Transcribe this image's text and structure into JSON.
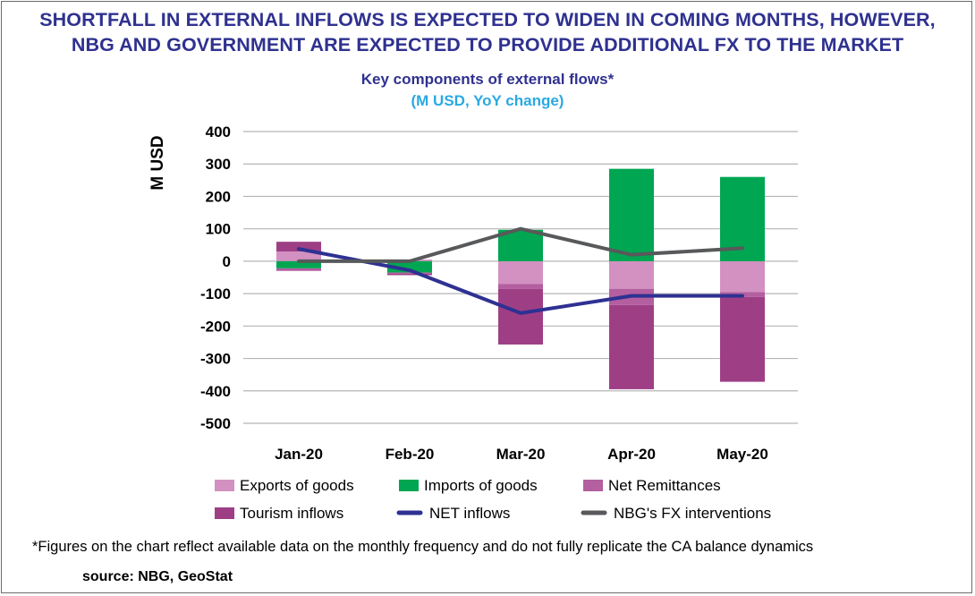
{
  "headline": {
    "line1": "SHORTFALL IN EXTERNAL INFLOWS IS EXPECTED TO WIDEN IN COMING MONTHS, HOWEVER,",
    "line2": "NBG AND GOVERNMENT ARE EXPECTED TO PROVIDE ADDITIONAL FX TO THE MARKET"
  },
  "footnote": "*Figures on the chart reflect available data on the monthly frequency and do not fully replicate the CA balance dynamics",
  "source": "source: NBG, GeoStat",
  "colors": {
    "headline": "#2f3190",
    "subtitle": "#29a9e1",
    "exports": "#d291c1",
    "imports": "#00a651",
    "remittances": "#b35fa0",
    "tourism": "#9e3f86",
    "net_inflows": "#2e3192",
    "nbg_fx": "#58595b",
    "grid": "#b5b5b5"
  },
  "chart_data": {
    "type": "bar",
    "stacked": true,
    "title": "Key components of external flows*",
    "subtitle": "(M USD, YoY change)",
    "ylabel": "M USD",
    "xlabel": "",
    "ylim": [
      -500,
      400
    ],
    "yticks": [
      400,
      300,
      200,
      100,
      0,
      -100,
      -200,
      -300,
      -400,
      -500
    ],
    "grid": true,
    "legend_position": "bottom",
    "categories": [
      "Jan-20",
      "Feb-20",
      "Mar-20",
      "Apr-20",
      "May-20"
    ],
    "series": [
      {
        "name": "Exports of goods",
        "kind": "bar",
        "color": "#d291c1",
        "values": [
          30,
          5,
          -70,
          -85,
          -95
        ]
      },
      {
        "name": "Imports of goods",
        "kind": "bar",
        "color": "#00a651",
        "values": [
          -22,
          -35,
          97,
          285,
          260
        ]
      },
      {
        "name": "Net Remittances",
        "kind": "bar",
        "color": "#b35fa0",
        "values": [
          -8,
          -3,
          -15,
          -50,
          -15
        ]
      },
      {
        "name": "Tourism inflows",
        "kind": "bar",
        "color": "#9e3f86",
        "values": [
          30,
          -5,
          -172,
          -260,
          -262
        ]
      },
      {
        "name": "NET inflows",
        "kind": "line",
        "color": "#2e3192",
        "values": [
          38,
          -28,
          -160,
          -107,
          -107
        ]
      },
      {
        "name": "NBG's FX interventions",
        "kind": "line",
        "color": "#58595b",
        "values": [
          0,
          0,
          100,
          20,
          40
        ]
      }
    ]
  }
}
